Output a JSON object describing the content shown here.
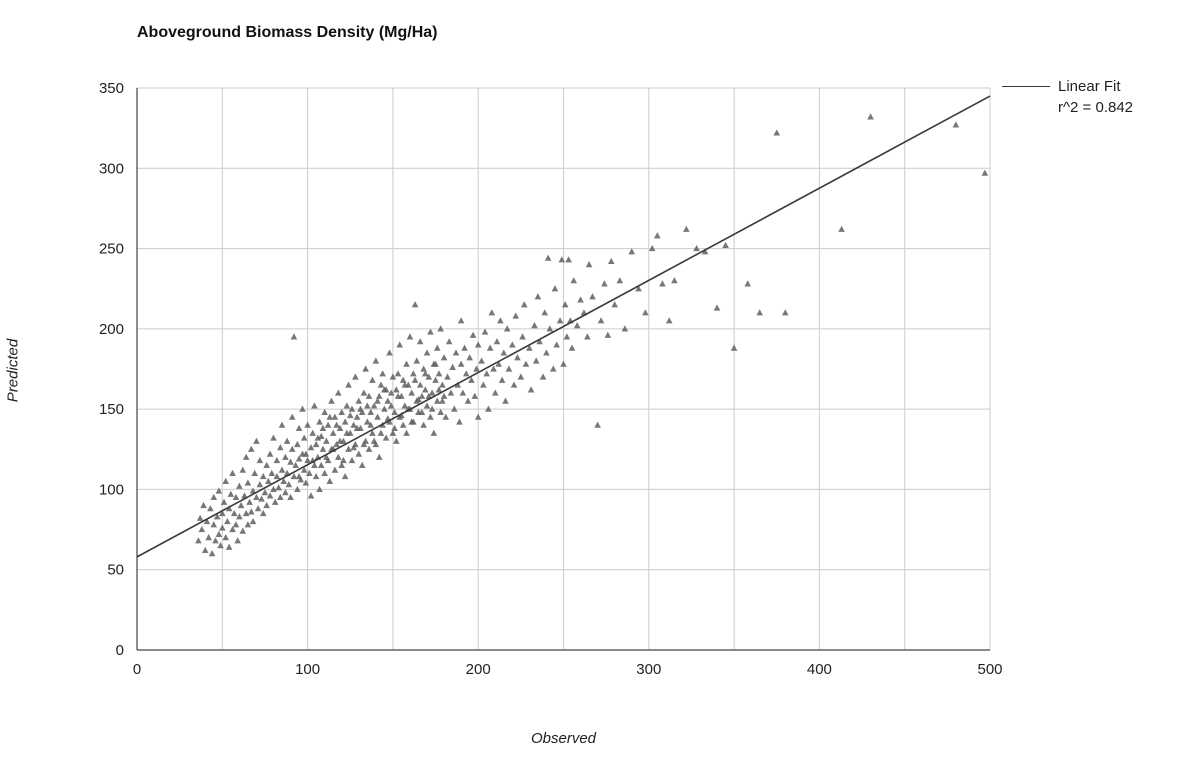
{
  "title": "Aboveground Biomass Density (Mg/Ha)",
  "axes": {
    "x_label": "Observed",
    "y_label": "Predicted"
  },
  "legend": {
    "line1": "Linear Fit",
    "line2": "r^2 = 0.842"
  },
  "colors": {
    "point": "#5f5f5f",
    "fit_line": "#3a3a3a",
    "grid": "#cccccc",
    "axis": "#444444",
    "tick_text": "#222222"
  },
  "chart_data": {
    "type": "scatter",
    "title": "Aboveground Biomass Density (Mg/Ha)",
    "xlabel": "Observed",
    "ylabel": "Predicted",
    "xlim": [
      0,
      500
    ],
    "ylim": [
      0,
      350
    ],
    "x_ticks": [
      0,
      100,
      200,
      300,
      400,
      500
    ],
    "x_gridlines": [
      0,
      50,
      100,
      150,
      200,
      250,
      300,
      350,
      400,
      450,
      500
    ],
    "y_ticks": [
      0,
      50,
      100,
      150,
      200,
      250,
      300,
      350
    ],
    "grid": true,
    "legend_position": "top-right",
    "legend_entries": [
      "Linear Fit",
      "r^2 = 0.842"
    ],
    "marker": "triangle",
    "fit_line": {
      "x": [
        0,
        500
      ],
      "y": [
        58,
        345
      ],
      "r_squared": 0.842
    },
    "points": [
      [
        36,
        68
      ],
      [
        37,
        82
      ],
      [
        39,
        90
      ],
      [
        38,
        75
      ],
      [
        40,
        62
      ],
      [
        41,
        80
      ],
      [
        42,
        70
      ],
      [
        43,
        88
      ],
      [
        44,
        60
      ],
      [
        45,
        78
      ],
      [
        45,
        95
      ],
      [
        46,
        68
      ],
      [
        47,
        83
      ],
      [
        48,
        72
      ],
      [
        48,
        99
      ],
      [
        49,
        65
      ],
      [
        50,
        85
      ],
      [
        50,
        76
      ],
      [
        51,
        92
      ],
      [
        52,
        70
      ],
      [
        52,
        105
      ],
      [
        53,
        80
      ],
      [
        54,
        88
      ],
      [
        54,
        64
      ],
      [
        55,
        97
      ],
      [
        56,
        75
      ],
      [
        56,
        110
      ],
      [
        57,
        85
      ],
      [
        58,
        78
      ],
      [
        58,
        95
      ],
      [
        59,
        68
      ],
      [
        60,
        102
      ],
      [
        60,
        83
      ],
      [
        61,
        90
      ],
      [
        62,
        74
      ],
      [
        62,
        112
      ],
      [
        63,
        96
      ],
      [
        64,
        85
      ],
      [
        64,
        120
      ],
      [
        65,
        78
      ],
      [
        65,
        104
      ],
      [
        66,
        92
      ],
      [
        67,
        86
      ],
      [
        67,
        125
      ],
      [
        68,
        99
      ],
      [
        68,
        80
      ],
      [
        69,
        110
      ],
      [
        70,
        95
      ],
      [
        70,
        130
      ],
      [
        71,
        88
      ],
      [
        72,
        103
      ],
      [
        72,
        118
      ],
      [
        73,
        94
      ],
      [
        74,
        108
      ],
      [
        74,
        85
      ],
      [
        75,
        98
      ],
      [
        76,
        115
      ],
      [
        76,
        90
      ],
      [
        77,
        105
      ],
      [
        78,
        122
      ],
      [
        78,
        96
      ],
      [
        79,
        110
      ],
      [
        80,
        100
      ],
      [
        80,
        132
      ],
      [
        81,
        92
      ],
      [
        82,
        108
      ],
      [
        82,
        118
      ],
      [
        83,
        101
      ],
      [
        84,
        126
      ],
      [
        84,
        95
      ],
      [
        85,
        112
      ],
      [
        85,
        140
      ],
      [
        86,
        105
      ],
      [
        87,
        98
      ],
      [
        87,
        120
      ],
      [
        88,
        110
      ],
      [
        88,
        130
      ],
      [
        89,
        103
      ],
      [
        90,
        117
      ],
      [
        90,
        95
      ],
      [
        91,
        125
      ],
      [
        91,
        145
      ],
      [
        92,
        108
      ],
      [
        92,
        195
      ],
      [
        93,
        115
      ],
      [
        94,
        100
      ],
      [
        94,
        128
      ],
      [
        95,
        119
      ],
      [
        95,
        138
      ],
      [
        96,
        106
      ],
      [
        97,
        122
      ],
      [
        97,
        150
      ],
      [
        98,
        112
      ],
      [
        98,
        132
      ],
      [
        99,
        104
      ],
      [
        100,
        118
      ],
      [
        100,
        140
      ],
      [
        101,
        110
      ],
      [
        102,
        126
      ],
      [
        102,
        96
      ],
      [
        103,
        135
      ],
      [
        104,
        115
      ],
      [
        104,
        152
      ],
      [
        105,
        108
      ],
      [
        105,
        128
      ],
      [
        106,
        120
      ],
      [
        107,
        142
      ],
      [
        107,
        100
      ],
      [
        108,
        115
      ],
      [
        108,
        133
      ],
      [
        109,
        125
      ],
      [
        110,
        110
      ],
      [
        110,
        148
      ],
      [
        95,
        108
      ],
      [
        99,
        122
      ],
      [
        103,
        118
      ],
      [
        106,
        132
      ],
      [
        109,
        138
      ],
      [
        111,
        120
      ],
      [
        113,
        145
      ],
      [
        115,
        125
      ],
      [
        117,
        140
      ],
      [
        119,
        130
      ],
      [
        111,
        130
      ],
      [
        112,
        118
      ],
      [
        112,
        140
      ],
      [
        113,
        105
      ],
      [
        114,
        125
      ],
      [
        114,
        155
      ],
      [
        115,
        135
      ],
      [
        116,
        112
      ],
      [
        116,
        145
      ],
      [
        117,
        128
      ],
      [
        118,
        120
      ],
      [
        118,
        160
      ],
      [
        119,
        138
      ],
      [
        120,
        115
      ],
      [
        120,
        148
      ],
      [
        121,
        130
      ],
      [
        122,
        142
      ],
      [
        122,
        108
      ],
      [
        123,
        152
      ],
      [
        124,
        125
      ],
      [
        124,
        165
      ],
      [
        125,
        135
      ],
      [
        126,
        118
      ],
      [
        126,
        150
      ],
      [
        127,
        140
      ],
      [
        128,
        128
      ],
      [
        128,
        170
      ],
      [
        129,
        145
      ],
      [
        130,
        122
      ],
      [
        130,
        155
      ],
      [
        121,
        118
      ],
      [
        123,
        135
      ],
      [
        125,
        146
      ],
      [
        127,
        126
      ],
      [
        129,
        138
      ],
      [
        131,
        150
      ],
      [
        133,
        128
      ],
      [
        135,
        152
      ],
      [
        137,
        140
      ],
      [
        139,
        130
      ],
      [
        131,
        138
      ],
      [
        132,
        148
      ],
      [
        132,
        115
      ],
      [
        133,
        160
      ],
      [
        134,
        130
      ],
      [
        134,
        175
      ],
      [
        135,
        142
      ],
      [
        136,
        125
      ],
      [
        136,
        158
      ],
      [
        137,
        148
      ],
      [
        138,
        135
      ],
      [
        138,
        168
      ],
      [
        139,
        152
      ],
      [
        140,
        128
      ],
      [
        140,
        180
      ],
      [
        141,
        145
      ],
      [
        142,
        158
      ],
      [
        142,
        120
      ],
      [
        143,
        165
      ],
      [
        144,
        140
      ],
      [
        144,
        172
      ],
      [
        145,
        150
      ],
      [
        146,
        132
      ],
      [
        146,
        162
      ],
      [
        147,
        155
      ],
      [
        148,
        142
      ],
      [
        148,
        185
      ],
      [
        149,
        160
      ],
      [
        150,
        135
      ],
      [
        150,
        170
      ],
      [
        141,
        155
      ],
      [
        143,
        135
      ],
      [
        145,
        162
      ],
      [
        147,
        144
      ],
      [
        149,
        152
      ],
      [
        151,
        138
      ],
      [
        153,
        158
      ],
      [
        155,
        146
      ],
      [
        157,
        165
      ],
      [
        159,
        150
      ],
      [
        151,
        148
      ],
      [
        152,
        162
      ],
      [
        152,
        130
      ],
      [
        153,
        172
      ],
      [
        154,
        145
      ],
      [
        154,
        190
      ],
      [
        155,
        158
      ],
      [
        156,
        140
      ],
      [
        156,
        168
      ],
      [
        157,
        152
      ],
      [
        158,
        178
      ],
      [
        158,
        135
      ],
      [
        159,
        165
      ],
      [
        160,
        150
      ],
      [
        160,
        195
      ],
      [
        161,
        160
      ],
      [
        162,
        172
      ],
      [
        162,
        142
      ],
      [
        163,
        215
      ],
      [
        164,
        155
      ],
      [
        164,
        180
      ],
      [
        165,
        148
      ],
      [
        166,
        165
      ],
      [
        166,
        192
      ],
      [
        167,
        158
      ],
      [
        168,
        175
      ],
      [
        168,
        140
      ],
      [
        169,
        162
      ],
      [
        170,
        185
      ],
      [
        170,
        152
      ],
      [
        161,
        142
      ],
      [
        163,
        168
      ],
      [
        165,
        156
      ],
      [
        167,
        148
      ],
      [
        169,
        172
      ],
      [
        171,
        158
      ],
      [
        173,
        150
      ],
      [
        175,
        178
      ],
      [
        177,
        162
      ],
      [
        179,
        155
      ],
      [
        171,
        170
      ],
      [
        172,
        145
      ],
      [
        172,
        198
      ],
      [
        173,
        160
      ],
      [
        174,
        178
      ],
      [
        174,
        135
      ],
      [
        175,
        168
      ],
      [
        176,
        155
      ],
      [
        176,
        188
      ],
      [
        177,
        172
      ],
      [
        178,
        148
      ],
      [
        178,
        200
      ],
      [
        179,
        165
      ],
      [
        180,
        158
      ],
      [
        180,
        182
      ],
      [
        181,
        145
      ],
      [
        182,
        170
      ],
      [
        183,
        192
      ],
      [
        184,
        160
      ],
      [
        185,
        176
      ],
      [
        186,
        150
      ],
      [
        187,
        185
      ],
      [
        188,
        165
      ],
      [
        189,
        142
      ],
      [
        190,
        178
      ],
      [
        190,
        205
      ],
      [
        191,
        160
      ],
      [
        192,
        188
      ],
      [
        193,
        172
      ],
      [
        194,
        155
      ],
      [
        195,
        182
      ],
      [
        196,
        168
      ],
      [
        197,
        196
      ],
      [
        198,
        158
      ],
      [
        199,
        175
      ],
      [
        200,
        145
      ],
      [
        200,
        190
      ],
      [
        202,
        180
      ],
      [
        203,
        165
      ],
      [
        204,
        198
      ],
      [
        205,
        172
      ],
      [
        206,
        150
      ],
      [
        207,
        188
      ],
      [
        208,
        210
      ],
      [
        209,
        175
      ],
      [
        210,
        160
      ],
      [
        211,
        192
      ],
      [
        212,
        178
      ],
      [
        213,
        205
      ],
      [
        214,
        168
      ],
      [
        215,
        185
      ],
      [
        216,
        155
      ],
      [
        217,
        200
      ],
      [
        218,
        175
      ],
      [
        220,
        190
      ],
      [
        221,
        165
      ],
      [
        222,
        208
      ],
      [
        223,
        182
      ],
      [
        225,
        170
      ],
      [
        226,
        195
      ],
      [
        227,
        215
      ],
      [
        228,
        178
      ],
      [
        230,
        188
      ],
      [
        231,
        162
      ],
      [
        233,
        202
      ],
      [
        234,
        180
      ],
      [
        235,
        220
      ],
      [
        236,
        192
      ],
      [
        238,
        170
      ],
      [
        239,
        210
      ],
      [
        240,
        185
      ],
      [
        241,
        244
      ],
      [
        242,
        200
      ],
      [
        244,
        175
      ],
      [
        245,
        225
      ],
      [
        246,
        190
      ],
      [
        248,
        205
      ],
      [
        249,
        243
      ],
      [
        250,
        178
      ],
      [
        251,
        215
      ],
      [
        252,
        195
      ],
      [
        253,
        243
      ],
      [
        254,
        205
      ],
      [
        255,
        188
      ],
      [
        256,
        230
      ],
      [
        258,
        202
      ],
      [
        260,
        218
      ],
      [
        262,
        210
      ],
      [
        264,
        195
      ],
      [
        265,
        240
      ],
      [
        267,
        220
      ],
      [
        270,
        140
      ],
      [
        272,
        205
      ],
      [
        274,
        228
      ],
      [
        276,
        196
      ],
      [
        278,
        242
      ],
      [
        280,
        215
      ],
      [
        283,
        230
      ],
      [
        286,
        200
      ],
      [
        290,
        248
      ],
      [
        294,
        225
      ],
      [
        298,
        210
      ],
      [
        302,
        250
      ],
      [
        305,
        258
      ],
      [
        308,
        228
      ],
      [
        312,
        205
      ],
      [
        315,
        230
      ],
      [
        322,
        262
      ],
      [
        328,
        250
      ],
      [
        333,
        248
      ],
      [
        340,
        213
      ],
      [
        345,
        252
      ],
      [
        350,
        188
      ],
      [
        358,
        228
      ],
      [
        365,
        210
      ],
      [
        375,
        322
      ],
      [
        380,
        210
      ],
      [
        413,
        262
      ],
      [
        430,
        332
      ],
      [
        480,
        327
      ],
      [
        497,
        297
      ]
    ]
  }
}
